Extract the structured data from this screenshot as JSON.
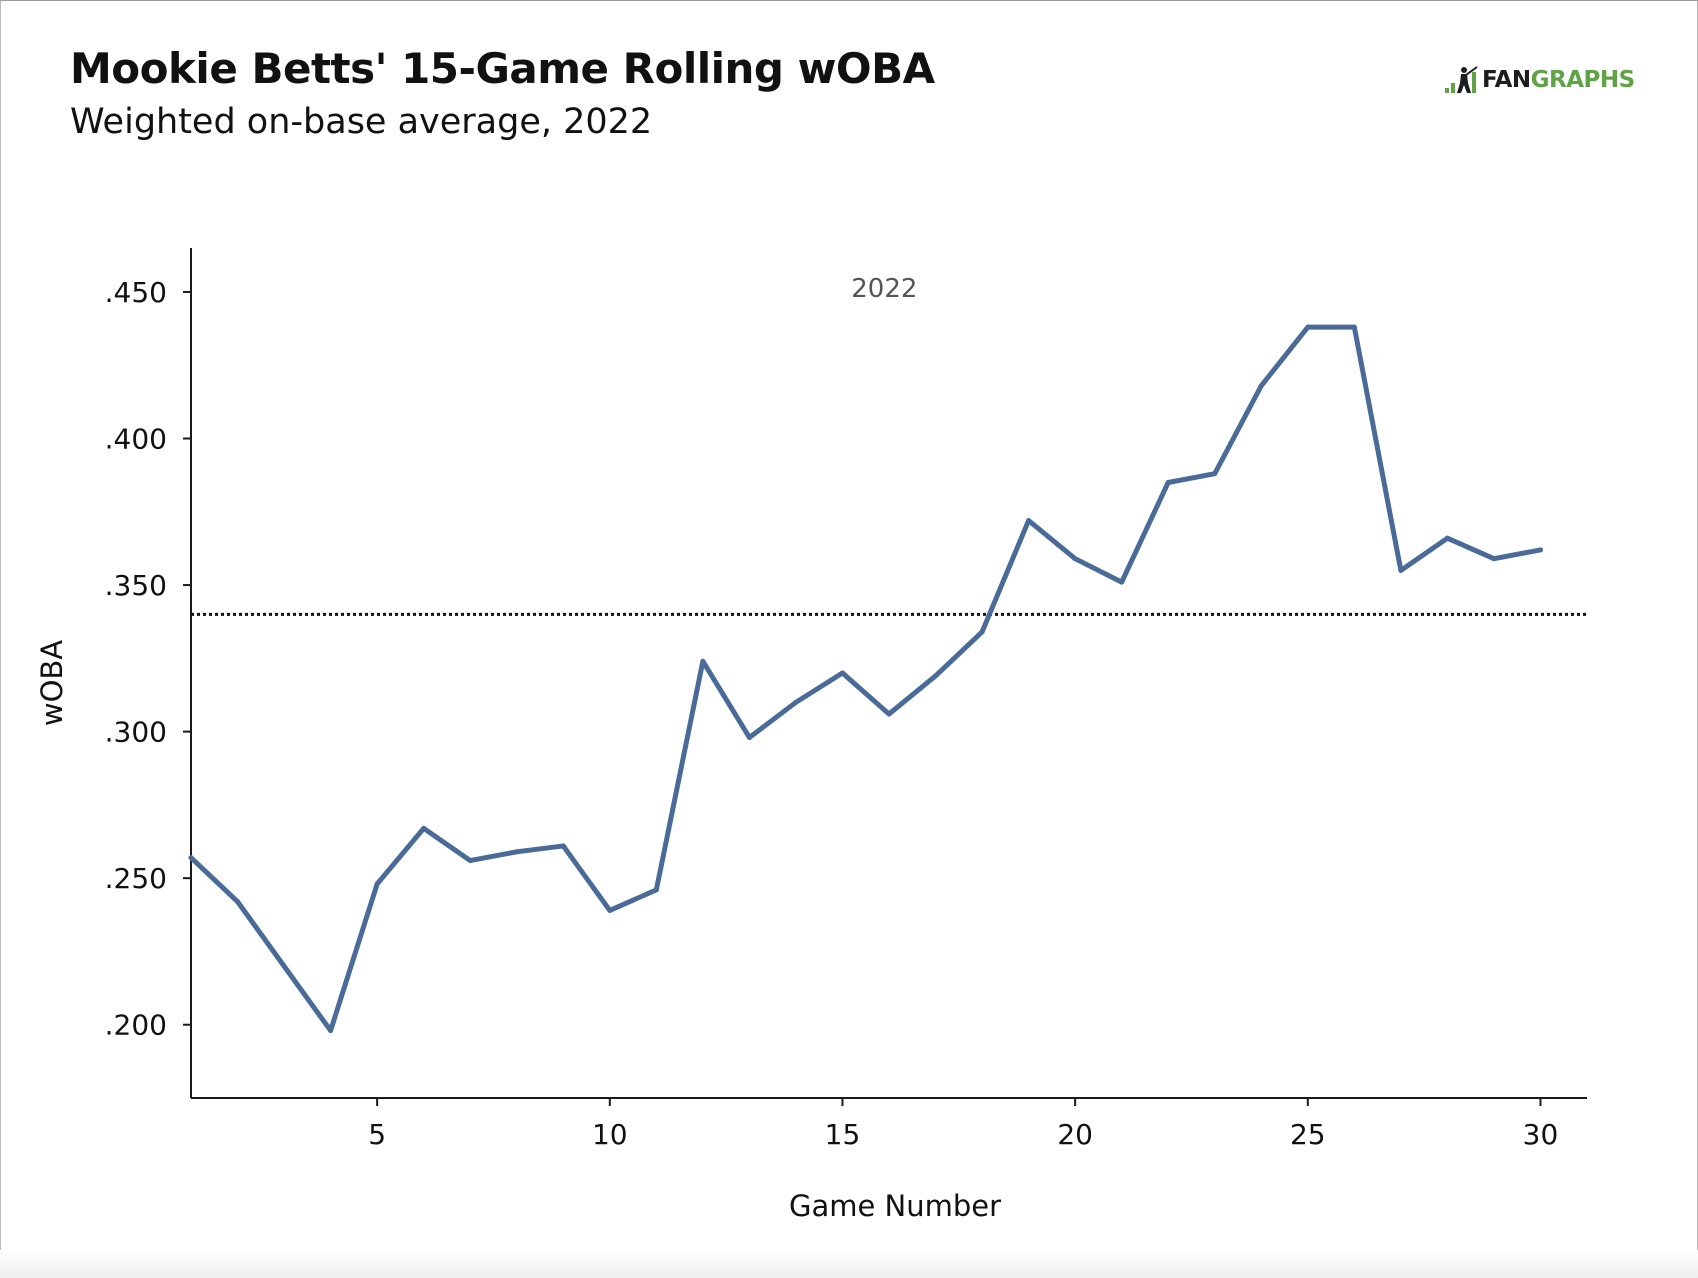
{
  "header": {
    "title": "Mookie Betts' 15-Game Rolling wOBA",
    "subtitle": "Weighted on-base average, 2022"
  },
  "logo": {
    "prefix": "FAN",
    "suffix": "GRAPHS",
    "icon": "fangraphs-batter-icon",
    "colors": {
      "dark": "#1d1d1d",
      "green": "#5fa346"
    }
  },
  "chart_data": {
    "type": "line",
    "title": "Mookie Betts' 15-Game Rolling wOBA",
    "subtitle": "Weighted on-base average, 2022",
    "xlabel": "Game Number",
    "ylabel": "wOBA",
    "annotation": "2022",
    "x": [
      1,
      2,
      3,
      4,
      5,
      6,
      7,
      8,
      9,
      10,
      11,
      12,
      13,
      14,
      15,
      16,
      17,
      18,
      19,
      20,
      21,
      22,
      23,
      24,
      25,
      26,
      27,
      28,
      29,
      30
    ],
    "series": [
      {
        "color": "#4a6b98",
        "values": [
          0.257,
          0.242,
          0.22,
          0.198,
          0.248,
          0.267,
          0.256,
          0.259,
          0.261,
          0.239,
          0.246,
          0.324,
          0.298,
          0.31,
          0.32,
          0.306,
          0.319,
          0.334,
          0.372,
          0.359,
          0.351,
          0.385,
          0.388,
          0.418,
          0.438,
          0.438,
          0.355,
          0.366,
          0.359,
          0.362
        ]
      }
    ],
    "reference_line": {
      "value": 0.34,
      "style": "dotted"
    },
    "xlim": [
      1,
      31
    ],
    "ylim": [
      0.175,
      0.465
    ],
    "xticks": [
      5,
      10,
      15,
      20,
      25,
      30
    ],
    "xtick_labels": [
      "5",
      "10",
      "15",
      "20",
      "25",
      "30"
    ],
    "yticks": [
      0.2,
      0.25,
      0.3,
      0.35,
      0.4,
      0.45
    ],
    "ytick_labels": [
      ".200",
      ".250",
      ".300",
      ".350",
      ".400",
      ".450"
    ],
    "grid": false,
    "legend": "none"
  }
}
